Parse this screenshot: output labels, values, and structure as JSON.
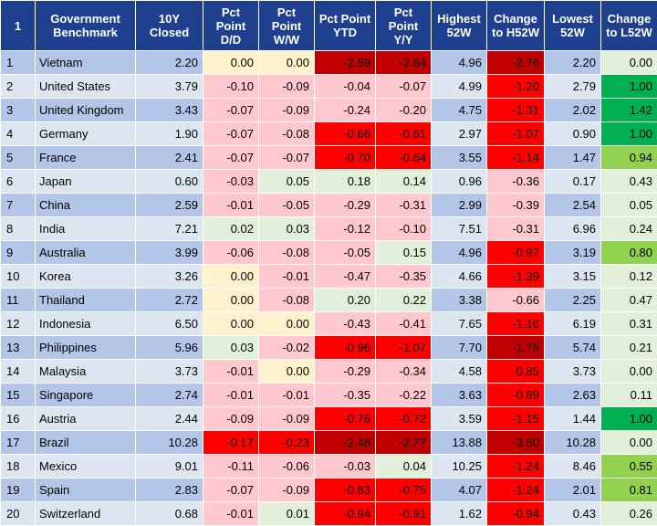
{
  "headers": [
    "1",
    "Government Benchmark",
    "10Y Closed",
    "Pct Point D/D",
    "Pct Point W/W",
    "Pct Point YTD",
    "Pct Point Y/Y",
    "Highest 52W",
    "Change to H52W",
    "Lowest 52W",
    "Change to L52W"
  ],
  "rows": [
    {
      "idx": "1",
      "name": "Vietnam",
      "closed": "2.20",
      "dd": "0.00",
      "ww": "0.00",
      "ytd": "-2.59",
      "yy": "-2.64",
      "high": "4.96",
      "chh": "-2.76",
      "low": "2.20",
      "chl": "0.00"
    },
    {
      "idx": "2",
      "name": "United States",
      "closed": "3.79",
      "dd": "-0.10",
      "ww": "-0.09",
      "ytd": "-0.04",
      "yy": "-0.07",
      "high": "4.99",
      "chh": "-1.20",
      "low": "2.79",
      "chl": "1.00"
    },
    {
      "idx": "3",
      "name": "United Kingdom",
      "closed": "3.43",
      "dd": "-0.07",
      "ww": "-0.09",
      "ytd": "-0.24",
      "yy": "-0.20",
      "high": "4.75",
      "chh": "-1.31",
      "low": "2.02",
      "chl": "1.42"
    },
    {
      "idx": "4",
      "name": "Germany",
      "closed": "1.90",
      "dd": "-0.07",
      "ww": "-0.08",
      "ytd": "-0.66",
      "yy": "-0.61",
      "high": "2.97",
      "chh": "-1.07",
      "low": "0.90",
      "chl": "1.00"
    },
    {
      "idx": "5",
      "name": "France",
      "closed": "2.41",
      "dd": "-0.07",
      "ww": "-0.07",
      "ytd": "-0.70",
      "yy": "-0.64",
      "high": "3.55",
      "chh": "-1.14",
      "low": "1.47",
      "chl": "0.94"
    },
    {
      "idx": "6",
      "name": "Japan",
      "closed": "0.60",
      "dd": "-0.03",
      "ww": "0.05",
      "ytd": "0.18",
      "yy": "0.14",
      "high": "0.96",
      "chh": "-0.36",
      "low": "0.17",
      "chl": "0.43"
    },
    {
      "idx": "7",
      "name": "China",
      "closed": "2.59",
      "dd": "-0.01",
      "ww": "-0.05",
      "ytd": "-0.29",
      "yy": "-0.31",
      "high": "2.99",
      "chh": "-0.39",
      "low": "2.54",
      "chl": "0.05"
    },
    {
      "idx": "8",
      "name": "India",
      "closed": "7.21",
      "dd": "0.02",
      "ww": "0.03",
      "ytd": "-0.12",
      "yy": "-0.10",
      "high": "7.51",
      "chh": "-0.31",
      "low": "6.96",
      "chl": "0.24"
    },
    {
      "idx": "9",
      "name": "Australia",
      "closed": "3.99",
      "dd": "-0.06",
      "ww": "-0.08",
      "ytd": "-0.05",
      "yy": "0.15",
      "high": "4.96",
      "chh": "-0.97",
      "low": "3.19",
      "chl": "0.80"
    },
    {
      "idx": "10",
      "name": "Korea",
      "closed": "3.26",
      "dd": "0.00",
      "ww": "-0.01",
      "ytd": "-0.47",
      "yy": "-0.35",
      "high": "4.66",
      "chh": "-1.39",
      "low": "3.15",
      "chl": "0.12"
    },
    {
      "idx": "11",
      "name": "Thailand",
      "closed": "2.72",
      "dd": "0.00",
      "ww": "-0.08",
      "ytd": "0.20",
      "yy": "0.22",
      "high": "3.38",
      "chh": "-0.66",
      "low": "2.25",
      "chl": "0.47"
    },
    {
      "idx": "12",
      "name": "Indonesia",
      "closed": "6.50",
      "dd": "0.00",
      "ww": "0.00",
      "ytd": "-0.43",
      "yy": "-0.41",
      "high": "7.65",
      "chh": "-1.16",
      "low": "6.19",
      "chl": "0.31"
    },
    {
      "idx": "13",
      "name": "Philippines",
      "closed": "5.96",
      "dd": "0.03",
      "ww": "-0.02",
      "ytd": "-0.96",
      "yy": "-1.07",
      "high": "7.70",
      "chh": "-1.75",
      "low": "5.74",
      "chl": "0.21"
    },
    {
      "idx": "14",
      "name": "Malaysia",
      "closed": "3.73",
      "dd": "-0.01",
      "ww": "0.00",
      "ytd": "-0.29",
      "yy": "-0.34",
      "high": "4.58",
      "chh": "-0.85",
      "low": "3.73",
      "chl": "0.00"
    },
    {
      "idx": "15",
      "name": "Singapore",
      "closed": "2.74",
      "dd": "-0.01",
      "ww": "-0.01",
      "ytd": "-0.35",
      "yy": "-0.22",
      "high": "3.63",
      "chh": "-0.89",
      "low": "2.63",
      "chl": "0.11"
    },
    {
      "idx": "16",
      "name": "Austria",
      "closed": "2.44",
      "dd": "-0.09",
      "ww": "-0.09",
      "ytd": "-0.76",
      "yy": "-0.72",
      "high": "3.59",
      "chh": "-1.15",
      "low": "1.44",
      "chl": "1.00"
    },
    {
      "idx": "17",
      "name": "Brazil",
      "closed": "10.28",
      "dd": "-0.17",
      "ww": "-0.23",
      "ytd": "-2.48",
      "yy": "-2.77",
      "high": "13.88",
      "chh": "-3.60",
      "low": "10.28",
      "chl": "0.00"
    },
    {
      "idx": "18",
      "name": "Mexico",
      "closed": "9.01",
      "dd": "-0.11",
      "ww": "-0.06",
      "ytd": "-0.03",
      "yy": "0.04",
      "high": "10.25",
      "chh": "-1.24",
      "low": "8.46",
      "chl": "0.55"
    },
    {
      "idx": "19",
      "name": "Spain",
      "closed": "2.83",
      "dd": "-0.07",
      "ww": "-0.09",
      "ytd": "-0.83",
      "yy": "-0.75",
      "high": "4.07",
      "chh": "-1.24",
      "low": "2.01",
      "chl": "0.81"
    },
    {
      "idx": "20",
      "name": "Switzerland",
      "closed": "0.68",
      "dd": "-0.01",
      "ww": "0.01",
      "ytd": "-0.94",
      "yy": "-0.91",
      "high": "1.62",
      "chh": "-0.94",
      "low": "0.43",
      "chl": "0.26"
    }
  ],
  "colors": {
    "header_bg": "#1f3f8f",
    "row_odd": "#b4c6e7",
    "row_even": "#dce6f1",
    "zero": "#fff2cc",
    "neg_light": "#ffc7ce",
    "neg_mid": "#ff7575",
    "neg_strong": "#ff0000",
    "neg_dark": "#c00000",
    "pos_light": "#e2efda",
    "pos_mid": "#92d050",
    "pos_strong": "#00b050"
  }
}
